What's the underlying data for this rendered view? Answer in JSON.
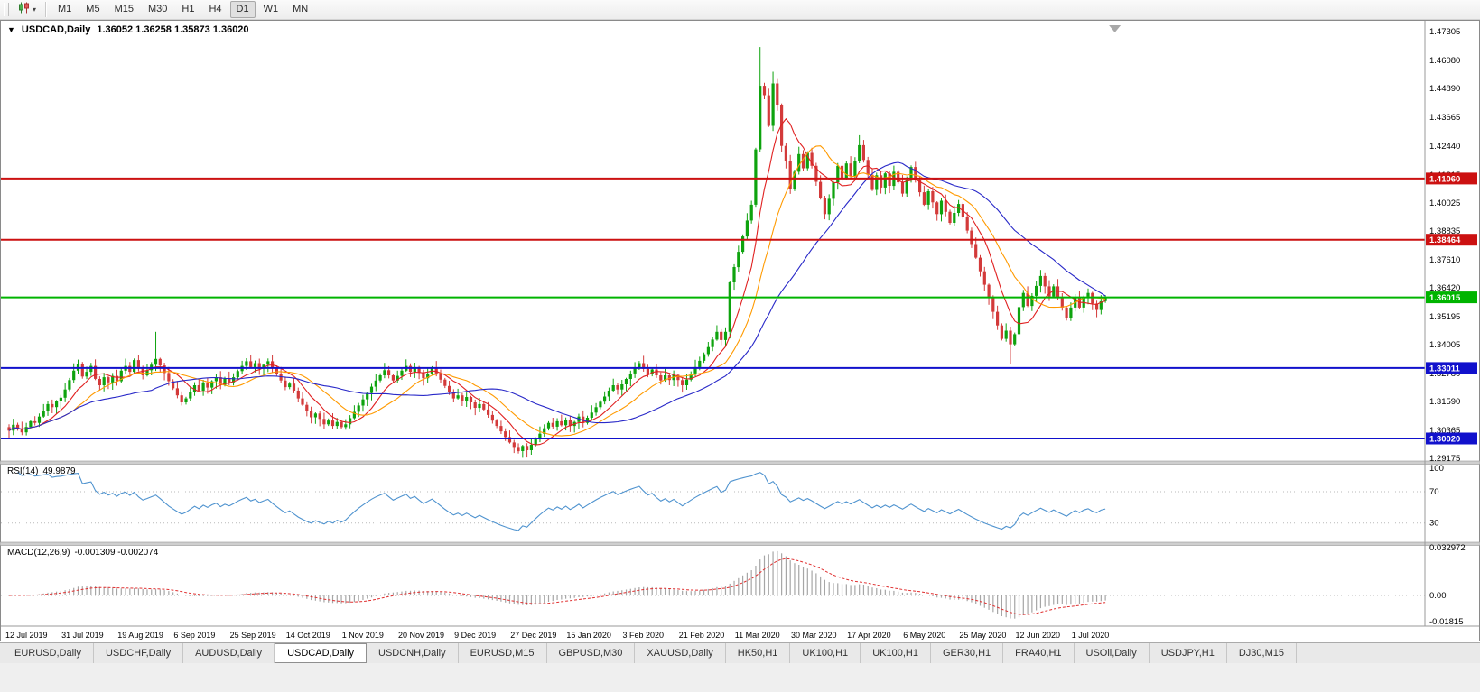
{
  "icons": {
    "window_menu": "▼",
    "dropdown": "▾",
    "chart_type": "candlestick-chart",
    "shift_marker": "chart-shift-triangle"
  },
  "toolbar": {
    "timeframes": {
      "items": [
        "M1",
        "M5",
        "M15",
        "M30",
        "H1",
        "H4",
        "D1",
        "W1",
        "MN"
      ],
      "active": "D1"
    }
  },
  "tabs": {
    "items": [
      "EURUSD,Daily",
      "USDCHF,Daily",
      "AUDUSD,Daily",
      "USDCAD,Daily",
      "USDCNH,Daily",
      "EURUSD,M15",
      "GBPUSD,M30",
      "XAUUSD,Daily",
      "HK50,H1",
      "UK100,H1",
      "UK100,H1",
      "GER30,H1",
      "FRA40,H1",
      "USOil,Daily",
      "USDJPY,H1",
      "DJ30,M15"
    ],
    "active_index": 3
  },
  "chart_data": {
    "type": "candlestick",
    "symbol_period": "USDCAD,Daily",
    "ohlc_text": "1.36052 1.36258 1.35873 1.36020",
    "x_labels": [
      "12 Jul 2019",
      "31 Jul 2019",
      "19 Aug 2019",
      "6 Sep 2019",
      "25 Sep 2019",
      "14 Oct 2019",
      "1 Nov 2019",
      "20 Nov 2019",
      "9 Dec 2019",
      "27 Dec 2019",
      "15 Jan 2020",
      "3 Feb 2020",
      "21 Feb 2020",
      "11 Mar 2020",
      "30 Mar 2020",
      "17 Apr 2020",
      "6 May 2020",
      "25 May 2020",
      "12 Jun 2020",
      "1 Jul 2020"
    ],
    "candles_per_label": 13,
    "price_axis": {
      "top_price": 1.47305,
      "labels": [
        "1.47305",
        "1.46080",
        "1.44890",
        "1.43665",
        "1.42440",
        "1.41215",
        "1.40025",
        "1.38835",
        "1.37610",
        "1.36420",
        "1.35195",
        "1.34005",
        "1.32780",
        "1.31590",
        "1.30365",
        "1.29175"
      ]
    },
    "horizontal_lines": [
      {
        "price": 1.4106,
        "color": "#cc1111",
        "badge": "1.41060"
      },
      {
        "price": 1.38464,
        "color": "#cc1111",
        "badge": "1.38464"
      },
      {
        "price": 1.36015,
        "color": "#00b400",
        "badge": "1.36015"
      },
      {
        "price": 1.33011,
        "color": "#1111cc",
        "badge": "1.33011"
      },
      {
        "price": 1.3002,
        "color": "#1111cc",
        "badge": "1.30020"
      }
    ],
    "moving_averages": [
      {
        "period": 8,
        "color": "#e02020"
      },
      {
        "period": 16,
        "color": "#ff9a00"
      },
      {
        "period": 34,
        "color": "#2828c8"
      }
    ],
    "candles": {
      "up_color": "#0ea30e",
      "down_color": "#d33a3a",
      "first_open": 1.305,
      "closes": [
        1.3035,
        1.306,
        1.3042,
        1.3028,
        1.3051,
        1.3075,
        1.3068,
        1.3095,
        1.312,
        1.3148,
        1.3135,
        1.316,
        1.3175,
        1.321,
        1.325,
        1.329,
        1.332,
        1.3265,
        1.3285,
        1.331,
        1.3255,
        1.3228,
        1.3262,
        1.324,
        1.3268,
        1.3245,
        1.329,
        1.331,
        1.3285,
        1.3335,
        1.3298,
        1.327,
        1.3292,
        1.3315,
        1.334,
        1.3312,
        1.328,
        1.3245,
        1.3215,
        1.3185,
        1.3155,
        1.3172,
        1.32,
        1.3228,
        1.3205,
        1.324,
        1.3218,
        1.3245,
        1.3262,
        1.323,
        1.3255,
        1.324,
        1.3262,
        1.3288,
        1.331,
        1.333,
        1.3305,
        1.3322,
        1.3298,
        1.3315,
        1.333,
        1.3302,
        1.3275,
        1.3248,
        1.322,
        1.3235,
        1.3205,
        1.3172,
        1.3145,
        1.3118,
        1.3092,
        1.3108,
        1.3085,
        1.3062,
        1.3078,
        1.3055,
        1.3072,
        1.305,
        1.3062,
        1.3088,
        1.3115,
        1.3142,
        1.3168,
        1.3195,
        1.3222,
        1.3248,
        1.327,
        1.3292,
        1.327,
        1.3248,
        1.3268,
        1.329,
        1.331,
        1.3285,
        1.3305,
        1.3282,
        1.3258,
        1.3278,
        1.33,
        1.3278,
        1.3252,
        1.3225,
        1.3198,
        1.3172,
        1.3185,
        1.3162,
        1.3178,
        1.3155,
        1.3132,
        1.3148,
        1.3125,
        1.3102,
        1.3078,
        1.3055,
        1.3032,
        1.3008,
        1.2985,
        1.2962,
        1.2948,
        1.297,
        1.2952,
        1.2975,
        1.2998,
        1.3022,
        1.3045,
        1.3068,
        1.3052,
        1.3075,
        1.3058,
        1.308,
        1.3055,
        1.3072,
        1.3095,
        1.3068,
        1.309,
        1.3112,
        1.3135,
        1.3158,
        1.318,
        1.3205,
        1.3228,
        1.321,
        1.3232,
        1.3255,
        1.3278,
        1.33,
        1.3322,
        1.3298,
        1.3275,
        1.3295,
        1.327,
        1.3248,
        1.327,
        1.325,
        1.3272,
        1.325,
        1.3228,
        1.3252,
        1.3278,
        1.3305,
        1.3332,
        1.336,
        1.339,
        1.3422,
        1.3455,
        1.342,
        1.3455,
        1.3665,
        1.373,
        1.3795,
        1.386,
        1.3928,
        1.3995,
        1.423,
        1.45,
        1.446,
        1.433,
        1.451,
        1.442,
        1.4245,
        1.418,
        1.406,
        1.4135,
        1.421,
        1.415,
        1.4215,
        1.416,
        1.4092,
        1.4022,
        1.3955,
        1.402,
        1.409,
        1.416,
        1.4105,
        1.417,
        1.4115,
        1.418,
        1.4248,
        1.4185,
        1.4122,
        1.4058,
        1.412,
        1.4068,
        1.4128,
        1.4075,
        1.4135,
        1.409,
        1.4042,
        1.4098,
        1.4155,
        1.41,
        1.4048,
        1.3995,
        1.4052,
        1.4005,
        1.3955,
        1.4012,
        1.3965,
        1.3918,
        1.396,
        1.3998,
        1.3942,
        1.3885,
        1.3828,
        1.377,
        1.3712,
        1.3655,
        1.3598,
        1.354,
        1.3482,
        1.3425,
        1.346,
        1.3402,
        1.3445,
        1.356,
        1.362,
        1.3565,
        1.3608,
        1.365,
        1.3692,
        1.3648,
        1.3605,
        1.3648,
        1.3602,
        1.3558,
        1.3512,
        1.3558,
        1.3602,
        1.3558,
        1.3598,
        1.362,
        1.3575,
        1.3548,
        1.3585,
        1.3602
      ],
      "wick_pattern": [
        0.0012,
        0.0026,
        0.0009,
        0.0031,
        0.0017,
        0.0007,
        0.0022,
        0.0013,
        0.0028,
        0.0011,
        0.0019,
        0.0005
      ],
      "overrides": {
        "34": {
          "high": 1.3455
        },
        "118": {
          "low": 1.2938
        },
        "174": {
          "high": 1.4665
        },
        "177": {
          "high": 1.456
        },
        "197": {
          "high": 1.429
        },
        "232": {
          "low": 1.3318
        },
        "239": {
          "high": 1.3718
        }
      }
    },
    "rsi": {
      "label": "RSI(14)",
      "value": "49.9879",
      "period": 14,
      "color": "#4f93cf",
      "axis_labels": [
        "100",
        "70",
        "30"
      ],
      "level_lines": [
        70,
        30
      ]
    },
    "macd": {
      "label": "MACD(12,26,9)",
      "values": "-0.001309 -0.002074",
      "fast": 12,
      "slow": 26,
      "signal": 9,
      "hist_color": "#a6a6a6",
      "signal_color": "#e03030",
      "axis_labels": [
        {
          "text": "0.032972",
          "value": 0.032972
        },
        {
          "text": "0.00",
          "value": 0
        },
        {
          "text": "-0.01815",
          "value": -0.01815
        }
      ]
    }
  }
}
